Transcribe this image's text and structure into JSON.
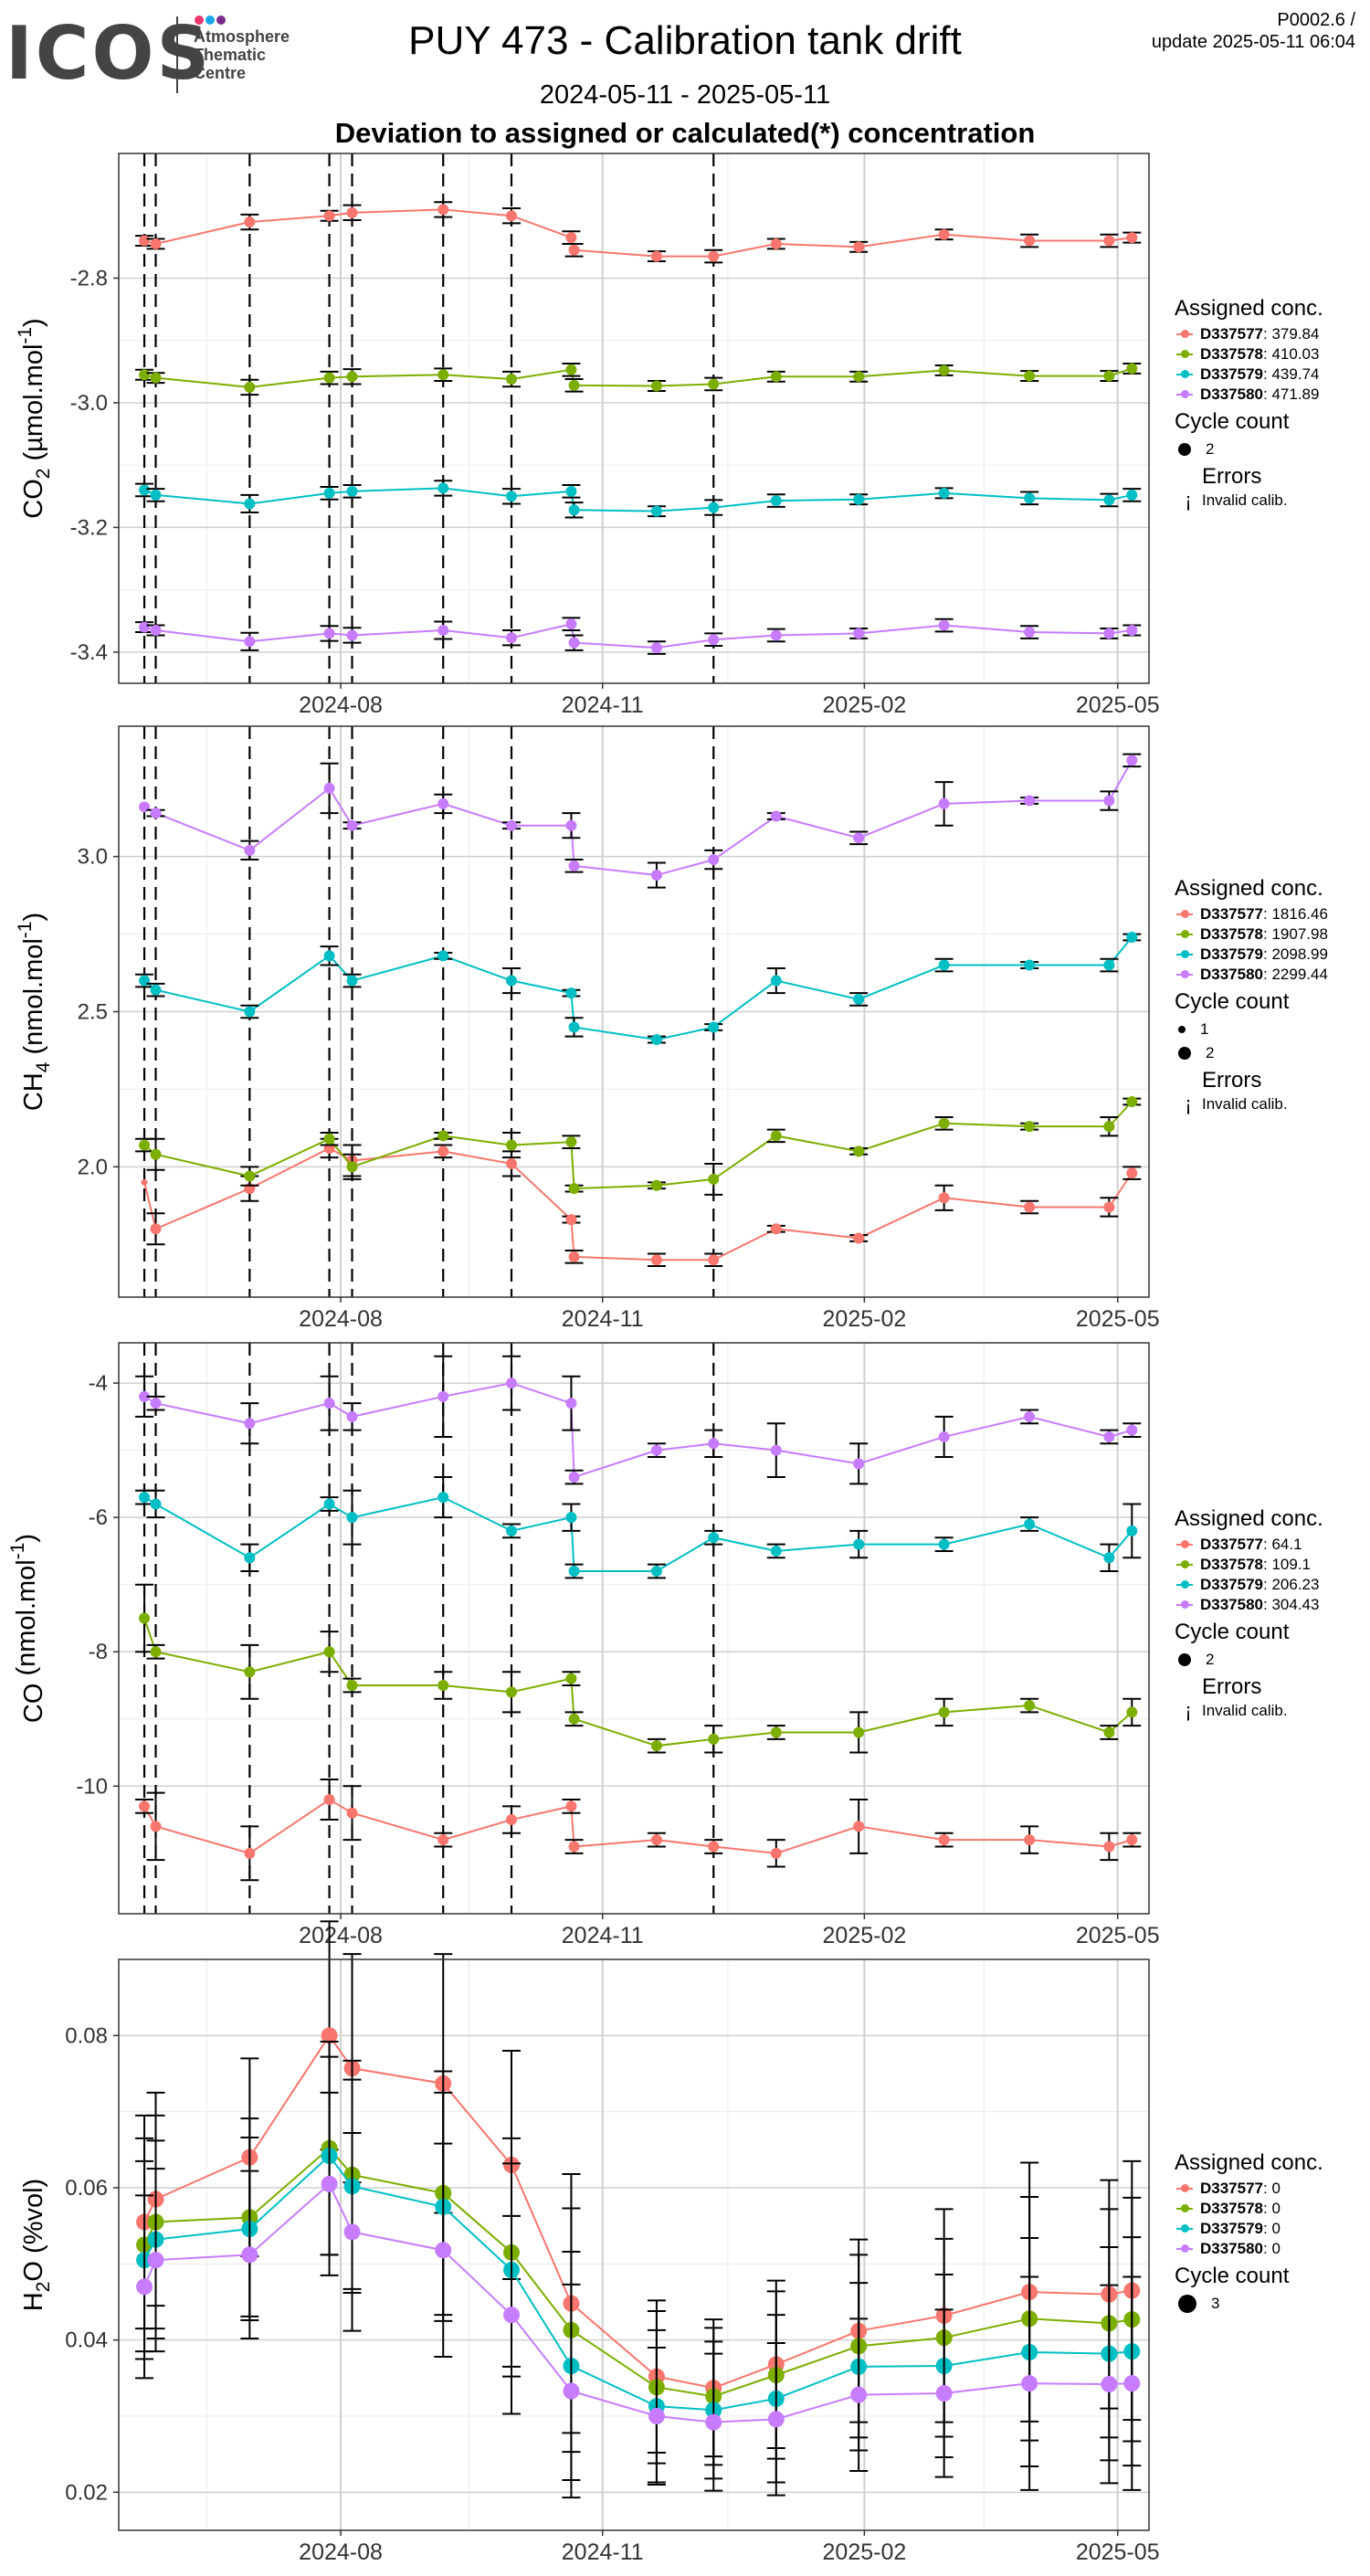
{
  "header": {
    "logo": "ICOS",
    "logo_sub": [
      "Atmosphere",
      "Thematic",
      "Centre"
    ],
    "logo_dot_colors": [
      "#e8366d",
      "#1aa6e6",
      "#7a2b8e"
    ],
    "title": "PUY 473 - Calibration tank drift",
    "code": "P0002.6 /",
    "update": "update  2025-05-11 06:04",
    "date_range": "2024-05-11 - 2025-05-11",
    "subtitle": "Deviation to assigned or calculated(*) concentration"
  },
  "colors": {
    "series": [
      "#f8766d",
      "#7cae00",
      "#00bfc4",
      "#c77cff"
    ],
    "grid_major": "#cfcfcf",
    "grid_minor": "#ececec"
  },
  "legend_labels": {
    "assigned": "Assigned conc.",
    "cycle": "Cycle count",
    "errors": "Errors",
    "invalid": "Invalid calib.",
    "invalid_symbol": "¡"
  },
  "chart_data": [
    {
      "type": "line",
      "ylabel_main": "CO",
      "ylabel_sub": "2",
      "ylabel_unit": " (µmol.mol",
      "ylabel_sup": "-1",
      "ylabel_end": ")",
      "ylim": [
        -3.45,
        -2.6
      ],
      "yticks": [
        -2.8,
        -3.0,
        -3.2,
        -3.4
      ],
      "ytick_labels": [
        "-2.8",
        "-3.0",
        "-3.2",
        "-3.4"
      ],
      "xticks": [
        "2024-08-01",
        "2024-11-01",
        "2025-02-01",
        "2025-05-01"
      ],
      "xtick_labels": [
        "2024-08",
        "2024-11",
        "2025-02",
        "2025-05"
      ],
      "vlines": [
        "2024-05-24",
        "2024-05-28",
        "2024-06-30",
        "2024-07-28",
        "2024-08-05",
        "2024-09-06",
        "2024-09-30",
        "2024-12-10"
      ],
      "x": [
        "2024-05-24",
        "2024-05-28",
        "2024-06-30",
        "2024-07-28",
        "2024-08-05",
        "2024-09-06",
        "2024-09-30",
        "2024-10-21",
        "2024-10-22",
        "2024-11-20",
        "2024-12-10",
        "2025-01-01",
        "2025-01-30",
        "2025-03-01",
        "2025-03-31",
        "2025-04-28",
        "2025-05-06"
      ],
      "series": [
        {
          "name": "D337577",
          "assigned": "379.84",
          "values": [
            -2.74,
            -2.745,
            -2.71,
            -2.7,
            -2.695,
            -2.69,
            -2.7,
            -2.735,
            -2.755,
            -2.765,
            -2.765,
            -2.745,
            -2.75,
            -2.73,
            -2.74,
            -2.74,
            -2.735
          ],
          "err": [
            0.008,
            0.008,
            0.012,
            0.008,
            0.012,
            0.012,
            0.012,
            0.01,
            0.01,
            0.008,
            0.01,
            0.008,
            0.008,
            0.008,
            0.01,
            0.01,
            0.008
          ]
        },
        {
          "name": "D337578",
          "assigned": "410.03",
          "values": [
            -2.955,
            -2.96,
            -2.975,
            -2.96,
            -2.958,
            -2.955,
            -2.962,
            -2.947,
            -2.972,
            -2.973,
            -2.97,
            -2.958,
            -2.958,
            -2.948,
            -2.957,
            -2.957,
            -2.945
          ],
          "err": [
            0.008,
            0.008,
            0.012,
            0.01,
            0.012,
            0.01,
            0.012,
            0.01,
            0.01,
            0.008,
            0.01,
            0.008,
            0.008,
            0.008,
            0.008,
            0.008,
            0.008
          ]
        },
        {
          "name": "D337579",
          "assigned": "439.74",
          "values": [
            -3.14,
            -3.148,
            -3.162,
            -3.145,
            -3.142,
            -3.137,
            -3.15,
            -3.142,
            -3.172,
            -3.174,
            -3.168,
            -3.157,
            -3.155,
            -3.145,
            -3.153,
            -3.156,
            -3.148
          ],
          "err": [
            0.01,
            0.01,
            0.014,
            0.01,
            0.01,
            0.012,
            0.012,
            0.01,
            0.012,
            0.008,
            0.012,
            0.01,
            0.008,
            0.008,
            0.01,
            0.01,
            0.01
          ]
        },
        {
          "name": "D337580",
          "assigned": "471.89",
          "values": [
            -3.36,
            -3.365,
            -3.383,
            -3.37,
            -3.373,
            -3.365,
            -3.377,
            -3.355,
            -3.385,
            -3.393,
            -3.38,
            -3.373,
            -3.37,
            -3.357,
            -3.368,
            -3.37,
            -3.365
          ],
          "err": [
            0.008,
            0.008,
            0.014,
            0.012,
            0.012,
            0.014,
            0.012,
            0.01,
            0.012,
            0.01,
            0.01,
            0.01,
            0.008,
            0.01,
            0.01,
            0.008,
            0.008
          ]
        }
      ],
      "cycle_counts": [
        "2"
      ]
    },
    {
      "type": "line",
      "ylabel_main": "CH",
      "ylabel_sub": "4",
      "ylabel_unit": " (nmol.mol",
      "ylabel_sup": "-1",
      "ylabel_end": ")",
      "ylim": [
        1.58,
        3.42
      ],
      "yticks": [
        3.0,
        2.5,
        2.0
      ],
      "ytick_labels": [
        "3.0",
        "2.5",
        "2.0"
      ],
      "xticks": [
        "2024-08-01",
        "2024-11-01",
        "2025-02-01",
        "2025-05-01"
      ],
      "xtick_labels": [
        "2024-08",
        "2024-11",
        "2025-02",
        "2025-05"
      ],
      "vlines": [
        "2024-05-24",
        "2024-05-28",
        "2024-06-30",
        "2024-07-28",
        "2024-08-05",
        "2024-09-06",
        "2024-09-30",
        "2024-12-10"
      ],
      "x": [
        "2024-05-24",
        "2024-05-28",
        "2024-06-30",
        "2024-07-28",
        "2024-08-05",
        "2024-09-06",
        "2024-09-30",
        "2024-10-21",
        "2024-10-22",
        "2024-11-20",
        "2024-12-10",
        "2025-01-01",
        "2025-01-30",
        "2025-03-01",
        "2025-03-31",
        "2025-04-28",
        "2025-05-06"
      ],
      "series": [
        {
          "name": "D337577",
          "assigned": "1816.46",
          "values": [
            1.95,
            1.8,
            1.93,
            2.06,
            2.02,
            2.05,
            2.01,
            1.83,
            1.71,
            1.7,
            1.7,
            1.8,
            1.77,
            1.9,
            1.87,
            1.87,
            1.98
          ],
          "err": [
            0.0,
            0.05,
            0.04,
            0.03,
            0.05,
            0.02,
            0.04,
            0.01,
            0.02,
            0.02,
            0.02,
            0.01,
            0.01,
            0.04,
            0.02,
            0.03,
            0.02
          ]
        },
        {
          "name": "D337578",
          "assigned": "1907.98",
          "values": [
            2.07,
            2.04,
            1.97,
            2.09,
            2.0,
            2.1,
            2.07,
            2.08,
            1.93,
            1.94,
            1.96,
            2.1,
            2.05,
            2.14,
            2.13,
            2.13,
            2.21
          ],
          "err": [
            0.02,
            0.05,
            0.03,
            0.02,
            0.04,
            0.01,
            0.04,
            0.02,
            0.01,
            0.01,
            0.05,
            0.02,
            0.01,
            0.02,
            0.01,
            0.03,
            0.01
          ]
        },
        {
          "name": "D337579",
          "assigned": "2098.99",
          "values": [
            2.6,
            2.57,
            2.5,
            2.68,
            2.6,
            2.68,
            2.6,
            2.56,
            2.45,
            2.41,
            2.45,
            2.6,
            2.54,
            2.65,
            2.65,
            2.65,
            2.74
          ],
          "err": [
            0.02,
            0.02,
            0.02,
            0.03,
            0.02,
            0.01,
            0.04,
            0.01,
            0.03,
            0.01,
            0.01,
            0.04,
            0.02,
            0.02,
            0.01,
            0.02,
            0.01
          ]
        },
        {
          "name": "D337580",
          "assigned": "2299.44",
          "values": [
            3.16,
            3.14,
            3.02,
            3.22,
            3.1,
            3.17,
            3.1,
            3.1,
            2.97,
            2.94,
            2.99,
            3.13,
            3.06,
            3.17,
            3.18,
            3.18,
            3.31
          ],
          "err": [
            0.0,
            0.01,
            0.03,
            0.08,
            0.01,
            0.03,
            0.01,
            0.04,
            0.02,
            0.04,
            0.03,
            0.01,
            0.02,
            0.07,
            0.01,
            0.03,
            0.02
          ]
        }
      ],
      "cycle_counts": [
        "1",
        "2"
      ]
    },
    {
      "type": "line",
      "ylabel_main": "CO",
      "ylabel_sub": "",
      "ylabel_unit": " (nmol.mol",
      "ylabel_sup": "-1",
      "ylabel_end": ")",
      "ylim": [
        -11.9,
        -3.4
      ],
      "yticks": [
        -4,
        -6,
        -8,
        -10
      ],
      "ytick_labels": [
        "-4",
        "-6",
        "-8",
        "-10"
      ],
      "xticks": [
        "2024-08-01",
        "2024-11-01",
        "2025-02-01",
        "2025-05-01"
      ],
      "xtick_labels": [
        "2024-08",
        "2024-11",
        "2025-02",
        "2025-05"
      ],
      "vlines": [
        "2024-05-24",
        "2024-05-28",
        "2024-06-30",
        "2024-07-28",
        "2024-08-05",
        "2024-09-06",
        "2024-09-30",
        "2024-12-10"
      ],
      "x": [
        "2024-05-24",
        "2024-05-28",
        "2024-06-30",
        "2024-07-28",
        "2024-08-05",
        "2024-09-06",
        "2024-09-30",
        "2024-10-21",
        "2024-10-22",
        "2024-11-20",
        "2024-12-10",
        "2025-01-01",
        "2025-01-30",
        "2025-03-01",
        "2025-03-31",
        "2025-04-28",
        "2025-05-06"
      ],
      "series": [
        {
          "name": "D337577",
          "assigned": "64.1",
          "values": [
            -10.3,
            -10.6,
            -11.0,
            -10.2,
            -10.4,
            -10.8,
            -10.5,
            -10.3,
            -10.9,
            -10.8,
            -10.9,
            -11.0,
            -10.6,
            -10.8,
            -10.8,
            -10.9,
            -10.8
          ],
          "err": [
            0.1,
            0.5,
            0.4,
            0.3,
            0.4,
            0.1,
            0.2,
            0.1,
            0.1,
            0.1,
            0.1,
            0.2,
            0.4,
            0.1,
            0.2,
            0.2,
            0.1
          ]
        },
        {
          "name": "D337578",
          "assigned": "109.1",
          "values": [
            -7.5,
            -8.0,
            -8.3,
            -8.0,
            -8.5,
            -8.5,
            -8.6,
            -8.4,
            -9.0,
            -9.4,
            -9.3,
            -9.2,
            -9.2,
            -8.9,
            -8.8,
            -9.2,
            -8.9
          ],
          "err": [
            0.5,
            0.1,
            0.4,
            0.3,
            0.1,
            0.2,
            0.3,
            0.1,
            0.1,
            0.1,
            0.2,
            0.1,
            0.3,
            0.2,
            0.1,
            0.1,
            0.2
          ]
        },
        {
          "name": "D337579",
          "assigned": "206.23",
          "values": [
            -5.7,
            -5.8,
            -6.6,
            -5.8,
            -6.0,
            -5.7,
            -6.2,
            -6.0,
            -6.8,
            -6.8,
            -6.3,
            -6.5,
            -6.4,
            -6.4,
            -6.1,
            -6.6,
            -6.2
          ],
          "err": [
            0.1,
            0.2,
            0.2,
            0.1,
            0.4,
            0.3,
            0.1,
            0.2,
            0.1,
            0.1,
            0.1,
            0.1,
            0.2,
            0.1,
            0.1,
            0.2,
            0.4
          ]
        },
        {
          "name": "D337580",
          "assigned": "304.43",
          "values": [
            -4.2,
            -4.3,
            -4.6,
            -4.3,
            -4.5,
            -4.2,
            -4.0,
            -4.3,
            -5.4,
            -5.0,
            -4.9,
            -5.0,
            -5.2,
            -4.8,
            -4.5,
            -4.8,
            -4.7
          ],
          "err": [
            0.3,
            0.1,
            0.3,
            0.4,
            0.2,
            0.6,
            0.4,
            0.4,
            0.1,
            0.1,
            0.2,
            0.4,
            0.3,
            0.3,
            0.1,
            0.1,
            0.1
          ]
        }
      ],
      "cycle_counts": [
        "2"
      ]
    },
    {
      "type": "line",
      "ylabel_main": "H",
      "ylabel_sub": "2",
      "ylabel_unit": "O (%vol)",
      "ylabel_sup": "",
      "ylabel_end": "",
      "ylim": [
        0.015,
        0.09
      ],
      "yticks": [
        0.08,
        0.06,
        0.04,
        0.02
      ],
      "ytick_labels": [
        "0.08",
        "0.06",
        "0.04",
        "0.02"
      ],
      "xticks": [
        "2024-08-01",
        "2024-11-01",
        "2025-02-01",
        "2025-05-01"
      ],
      "xtick_labels": [
        "2024-08",
        "2024-11",
        "2025-02",
        "2025-05"
      ],
      "vlines": [],
      "x": [
        "2024-05-24",
        "2024-05-28",
        "2024-06-30",
        "2024-07-28",
        "2024-08-05",
        "2024-09-06",
        "2024-09-30",
        "2024-10-21",
        "2024-11-20",
        "2024-12-10",
        "2025-01-01",
        "2025-01-30",
        "2025-03-01",
        "2025-03-31",
        "2025-04-28",
        "2025-05-06"
      ],
      "series": [
        {
          "name": "D337577",
          "assigned": "0",
          "values": [
            0.0555,
            0.0585,
            0.064,
            0.08,
            0.0757,
            0.0737,
            0.063,
            0.0448,
            0.0352,
            0.0337,
            0.0368,
            0.0412,
            0.0432,
            0.0463,
            0.046,
            0.0465
          ],
          "err": [
            0.014,
            0.014,
            0.013,
            0.015,
            0.015,
            0.017,
            0.015,
            0.017,
            0.01,
            0.009,
            0.011,
            0.012,
            0.014,
            0.017,
            0.015,
            0.017
          ]
        },
        {
          "name": "D337578",
          "assigned": "0",
          "values": [
            0.0525,
            0.0555,
            0.0561,
            0.0652,
            0.0617,
            0.0593,
            0.0515,
            0.0413,
            0.0338,
            0.0326,
            0.0354,
            0.0392,
            0.0403,
            0.0428,
            0.0422,
            0.0427
          ],
          "err": [
            0.014,
            0.014,
            0.013,
            0.014,
            0.015,
            0.016,
            0.015,
            0.016,
            0.01,
            0.009,
            0.011,
            0.012,
            0.013,
            0.016,
            0.015,
            0.016
          ]
        },
        {
          "name": "D337579",
          "assigned": "0",
          "values": [
            0.0505,
            0.0532,
            0.0546,
            0.0642,
            0.0602,
            0.0575,
            0.0492,
            0.0366,
            0.0313,
            0.0308,
            0.0323,
            0.0365,
            0.0366,
            0.0384,
            0.0382,
            0.0385
          ],
          "err": [
            0.013,
            0.013,
            0.012,
            0.013,
            0.014,
            0.015,
            0.014,
            0.015,
            0.01,
            0.009,
            0.011,
            0.011,
            0.012,
            0.015,
            0.014,
            0.015
          ]
        },
        {
          "name": "D337580",
          "assigned": "0",
          "values": [
            0.047,
            0.0505,
            0.0512,
            0.0605,
            0.0542,
            0.0518,
            0.0433,
            0.0333,
            0.03,
            0.0292,
            0.0296,
            0.0328,
            0.033,
            0.0343,
            0.0342,
            0.0343
          ],
          "err": [
            0.012,
            0.012,
            0.011,
            0.012,
            0.013,
            0.014,
            0.013,
            0.014,
            0.009,
            0.009,
            0.01,
            0.01,
            0.011,
            0.014,
            0.013,
            0.014
          ]
        }
      ],
      "cycle_counts": [
        "3"
      ]
    }
  ]
}
